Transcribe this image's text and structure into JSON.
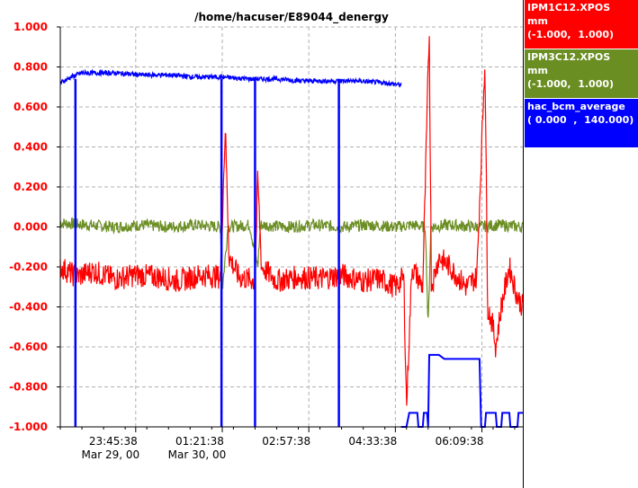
{
  "chart_data": {
    "type": "line",
    "title": "/home/hacuser/E89044_denergy",
    "ylim": [
      -1.0,
      1.0
    ],
    "y_ticks": [
      "1.000",
      "0.800",
      "0.600",
      "0.400",
      "0.200",
      "0.000",
      "-0.200",
      "-0.400",
      "-0.600",
      "-0.800",
      "-1.000"
    ],
    "y_tick_values": [
      1.0,
      0.8,
      0.6,
      0.4,
      0.2,
      0.0,
      -0.2,
      -0.4,
      -0.6,
      -0.8,
      -1.0
    ],
    "xlim": [
      "Mar 29, 00 22:22:00",
      "Mar 30, 00 06:55:00"
    ],
    "x_ticks": [
      {
        "time": "23:45:38",
        "date": "Mar 29, 00",
        "hours": 1.394
      },
      {
        "time": "01:21:38",
        "date": "Mar 30, 00",
        "hours": 2.994
      },
      {
        "time": "02:57:38",
        "date": "",
        "hours": 4.594
      },
      {
        "time": "04:33:38",
        "date": "",
        "hours": 6.194
      },
      {
        "time": "06:09:38",
        "date": "",
        "hours": 7.794
      }
    ],
    "x_range_hours": [
      0,
      8.55
    ],
    "grid": true,
    "y_tick_color": "#ff0000",
    "series": [
      {
        "name": "IPM1C12.XPOS",
        "unit": "mm",
        "range": "(-1.000,  1.000)",
        "color": "#ff0000",
        "points": [
          [
            0,
            -0.2
          ],
          [
            0.3,
            -0.25
          ],
          [
            0.6,
            -0.22
          ],
          [
            1.0,
            -0.26
          ],
          [
            1.4,
            -0.24
          ],
          [
            1.8,
            -0.25
          ],
          [
            2.2,
            -0.27
          ],
          [
            2.6,
            -0.24
          ],
          [
            2.96,
            -0.25
          ],
          [
            3.05,
            0.5
          ],
          [
            3.12,
            -0.15
          ],
          [
            3.3,
            -0.25
          ],
          [
            3.6,
            -0.27
          ],
          [
            3.65,
            0.25
          ],
          [
            3.72,
            -0.2
          ],
          [
            4.0,
            -0.27
          ],
          [
            4.4,
            -0.25
          ],
          [
            4.8,
            -0.26
          ],
          [
            5.2,
            -0.24
          ],
          [
            5.6,
            -0.27
          ],
          [
            5.9,
            -0.26
          ],
          [
            6.2,
            -0.3
          ],
          [
            6.35,
            -0.25
          ],
          [
            6.4,
            -0.9
          ],
          [
            6.5,
            -0.2
          ],
          [
            6.6,
            -0.25
          ],
          [
            6.7,
            -0.3
          ],
          [
            6.82,
            0.99
          ],
          [
            6.86,
            -0.3
          ],
          [
            7.0,
            -0.15
          ],
          [
            7.2,
            -0.2
          ],
          [
            7.5,
            -0.3
          ],
          [
            7.7,
            -0.25
          ],
          [
            7.85,
            0.85
          ],
          [
            7.9,
            -0.4
          ],
          [
            8.0,
            -0.5
          ],
          [
            8.05,
            -0.6
          ],
          [
            8.15,
            -0.4
          ],
          [
            8.3,
            -0.2
          ],
          [
            8.45,
            -0.35
          ],
          [
            8.55,
            -0.4
          ]
        ]
      },
      {
        "name": "IPM3C12.XPOS",
        "unit": "mm",
        "range": "(-1.000,  1.000)",
        "color": "#6b8e23",
        "points": [
          [
            0,
            0.02
          ],
          [
            0.5,
            0.01
          ],
          [
            1.0,
            0.0
          ],
          [
            1.5,
            0.01
          ],
          [
            2.0,
            0.0
          ],
          [
            2.5,
            0.01
          ],
          [
            2.96,
            0.0
          ],
          [
            3.0,
            -0.3
          ],
          [
            3.1,
            0.0
          ],
          [
            3.5,
            0.01
          ],
          [
            3.65,
            -0.2
          ],
          [
            3.7,
            0.01
          ],
          [
            4.2,
            0.0
          ],
          [
            4.7,
            0.01
          ],
          [
            5.2,
            0.0
          ],
          [
            5.7,
            0.01
          ],
          [
            6.2,
            0.0
          ],
          [
            6.5,
            0.01
          ],
          [
            6.75,
            0.0
          ],
          [
            6.8,
            -0.5
          ],
          [
            6.85,
            0.0
          ],
          [
            7.2,
            0.01
          ],
          [
            7.7,
            0.0
          ],
          [
            8.1,
            0.01
          ],
          [
            8.55,
            0.0
          ]
        ]
      },
      {
        "name": "hac_bcm_average",
        "unit": "",
        "range": "( 0.000  ,  140.000)",
        "color": "#0000ff",
        "points": [
          [
            0,
            0.72
          ],
          [
            0.2,
            0.75
          ],
          [
            0.4,
            0.77
          ],
          [
            1.0,
            0.77
          ],
          [
            1.5,
            0.76
          ],
          [
            2.0,
            0.76
          ],
          [
            2.5,
            0.75
          ],
          [
            2.96,
            0.75
          ],
          [
            3.5,
            0.74
          ],
          [
            4.0,
            0.74
          ],
          [
            4.5,
            0.73
          ],
          [
            5.0,
            0.73
          ],
          [
            5.5,
            0.73
          ],
          [
            6.0,
            0.72
          ],
          [
            6.3,
            0.71
          ]
        ],
        "dropouts_hours": [
          0.28,
          2.98,
          3.6,
          5.15
        ],
        "tail_points": [
          [
            6.3,
            -1.0
          ],
          [
            6.4,
            -1.0
          ],
          [
            6.45,
            -0.93
          ],
          [
            6.6,
            -0.93
          ],
          [
            6.62,
            -1.0
          ],
          [
            6.7,
            -1.0
          ],
          [
            6.72,
            -0.93
          ],
          [
            6.78,
            -0.93
          ],
          [
            6.8,
            -1.0
          ],
          [
            6.82,
            -0.64
          ],
          [
            7.0,
            -0.64
          ],
          [
            7.1,
            -0.66
          ],
          [
            7.4,
            -0.66
          ],
          [
            7.75,
            -0.66
          ],
          [
            7.78,
            -1.0
          ],
          [
            7.85,
            -1.0
          ],
          [
            7.87,
            -0.93
          ],
          [
            8.05,
            -0.93
          ],
          [
            8.07,
            -1.0
          ],
          [
            8.15,
            -1.0
          ],
          [
            8.17,
            -0.93
          ],
          [
            8.3,
            -0.93
          ],
          [
            8.32,
            -1.0
          ],
          [
            8.45,
            -1.0
          ],
          [
            8.47,
            -0.93
          ],
          [
            8.55,
            -0.93
          ]
        ]
      }
    ]
  },
  "legend": [
    {
      "name": "IPM1C12.XPOS",
      "unit": "mm",
      "range": "(-1.000,  1.000)",
      "color": "#ff0000"
    },
    {
      "name": "IPM3C12.XPOS",
      "unit": "mm",
      "range": "(-1.000,  1.000)",
      "color": "#6b8e23"
    },
    {
      "name": "hac_bcm_average",
      "unit": "",
      "range": "( 0.000  ,  140.000)",
      "color": "#0000ff"
    }
  ]
}
